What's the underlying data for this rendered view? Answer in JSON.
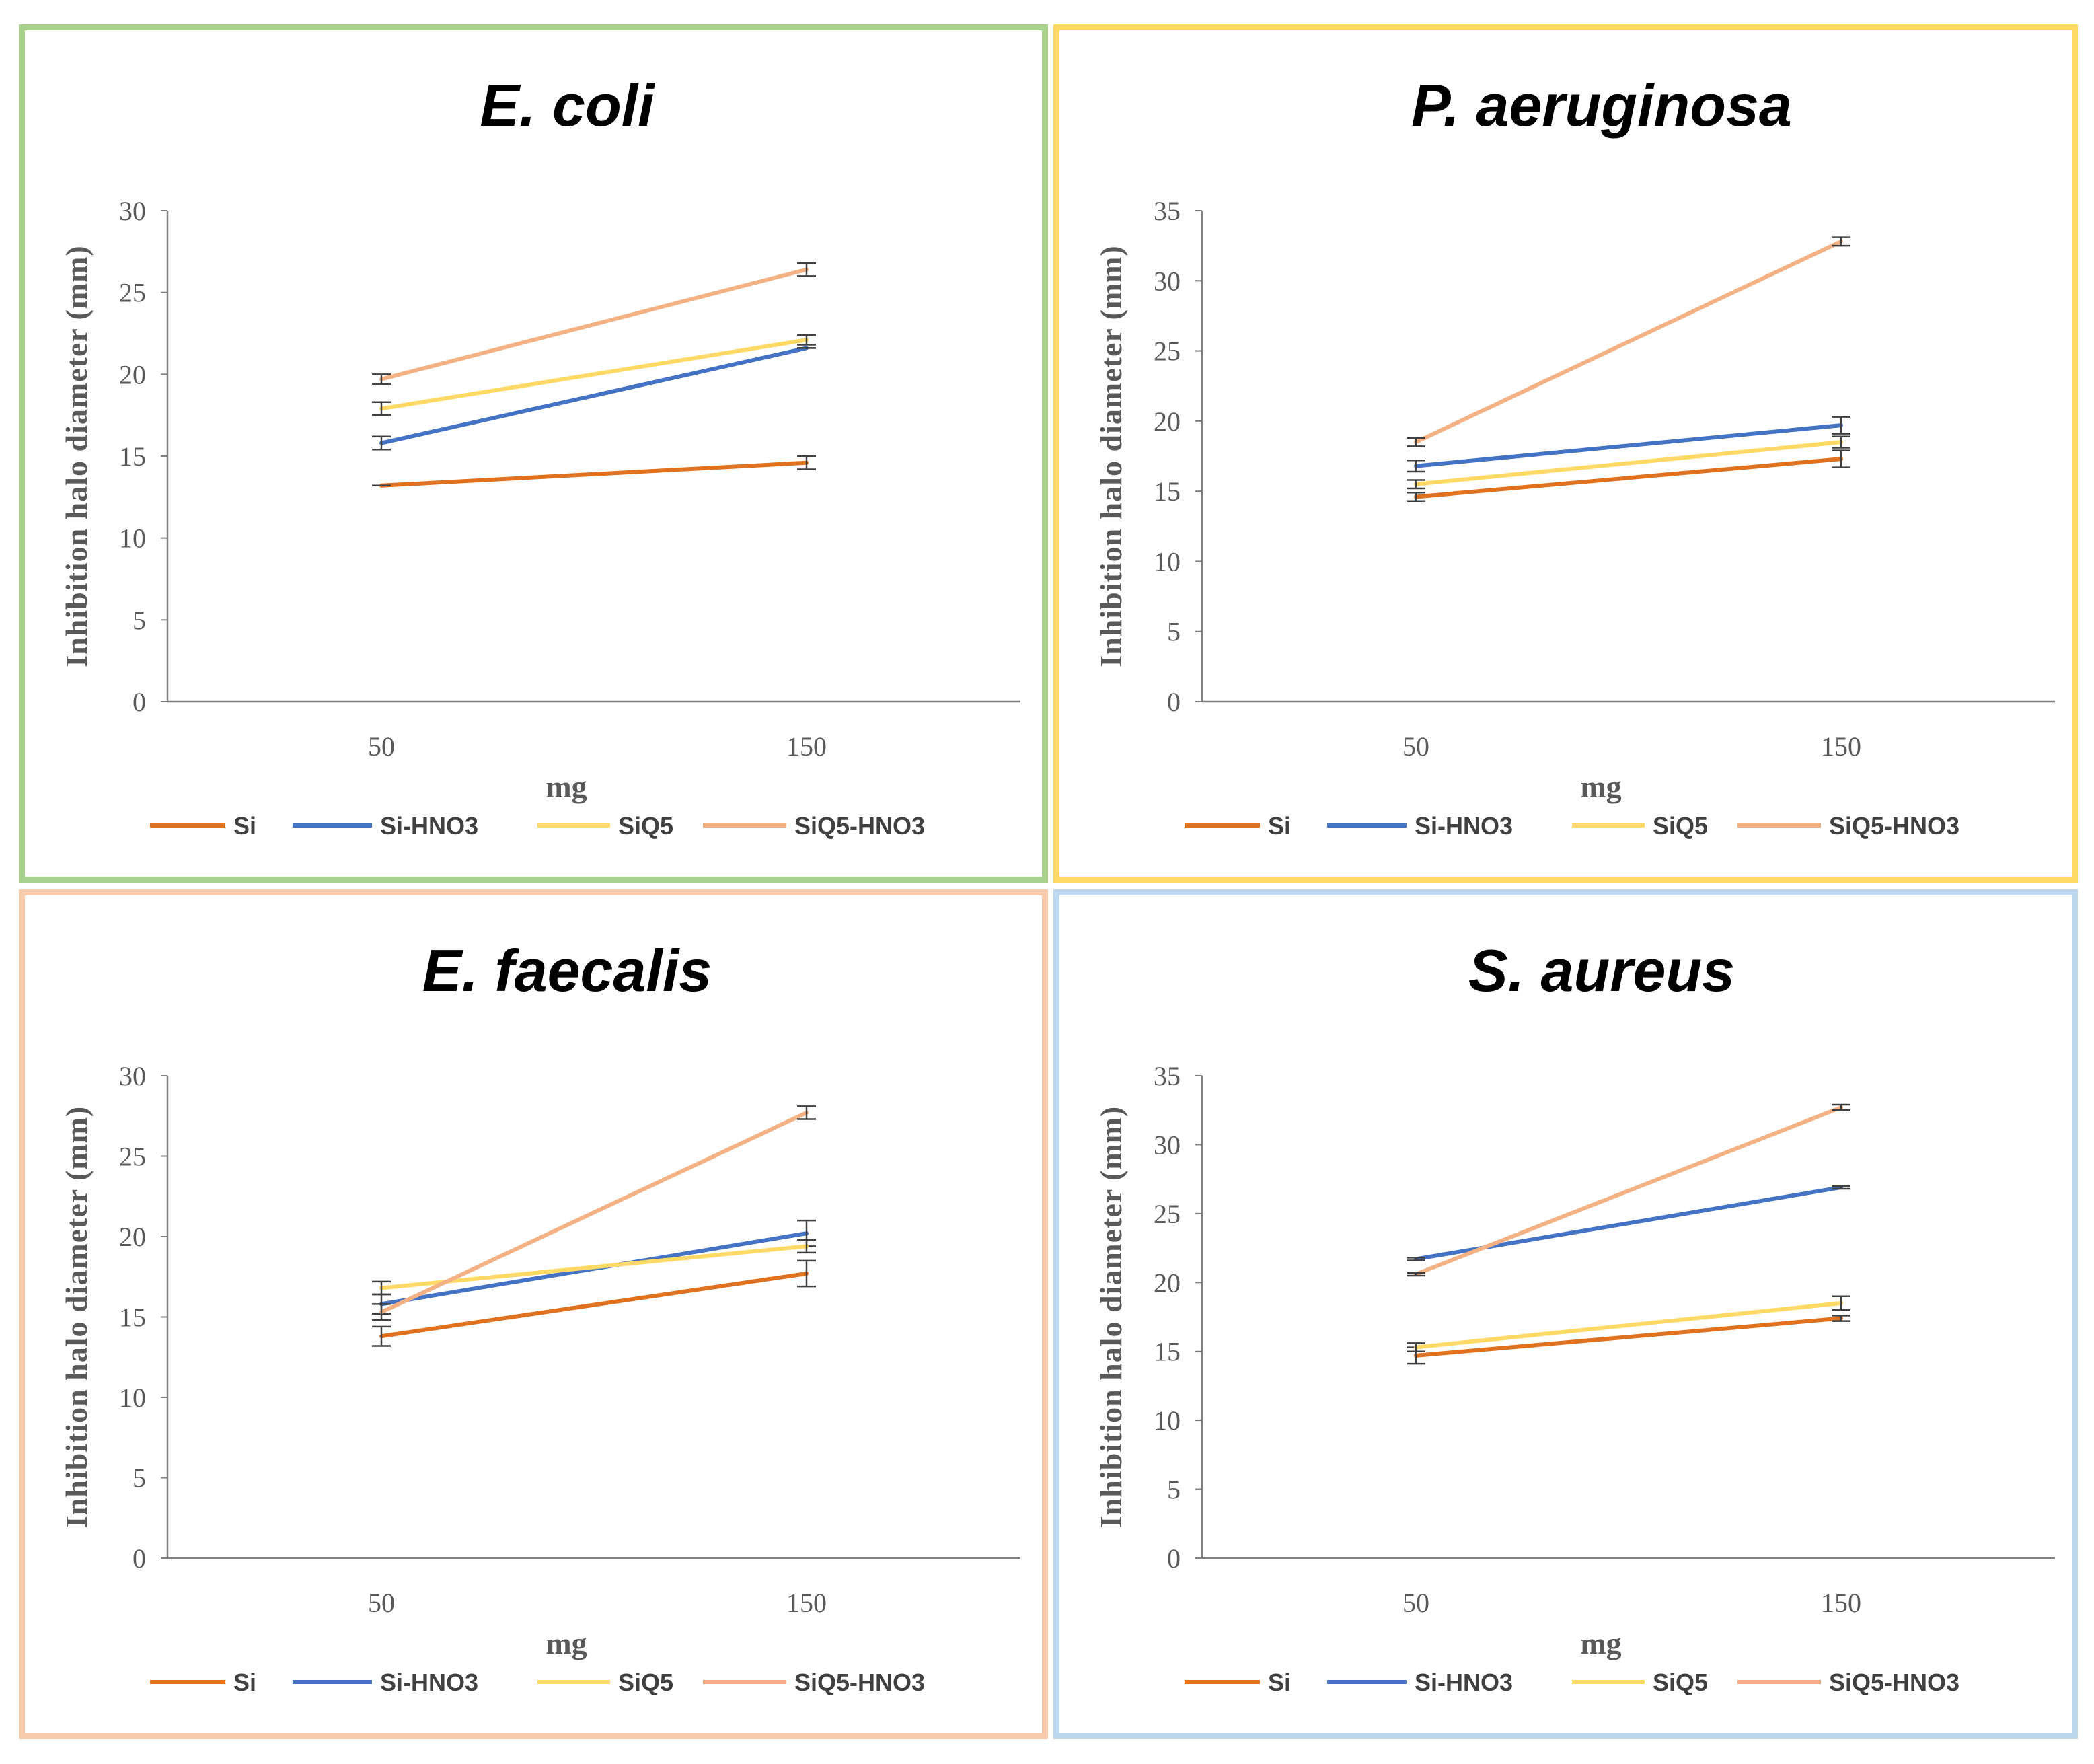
{
  "colors": {
    "Si": "#e0711f",
    "Si-HNO3": "#4472c4",
    "SiQ5": "#ffd966",
    "SiQ5-HNO3": "#f4b183",
    "axis": "#808080",
    "error_bar": "#404040",
    "panel_borders": [
      "#a9d18e",
      "#ffd966",
      "#f8cbad",
      "#bdd7ee"
    ]
  },
  "chart_data": [
    {
      "type": "line",
      "title": "E. coli",
      "xlabel": "mg",
      "ylabel": "Inhibition  halo diameter (mm)",
      "categories": [
        "50",
        "150"
      ],
      "ylim": [
        0,
        30
      ],
      "yticks": [
        0,
        5,
        10,
        15,
        20,
        25,
        30
      ],
      "legend": "bottom",
      "series": [
        {
          "name": "Si",
          "values": [
            13.2,
            14.6
          ],
          "errors": [
            0.0,
            0.4
          ]
        },
        {
          "name": "Si-HNO3",
          "values": [
            15.8,
            21.6
          ],
          "errors": [
            0.4,
            0.0
          ]
        },
        {
          "name": "SiQ5",
          "values": [
            17.9,
            22.1
          ],
          "errors": [
            0.4,
            0.3
          ]
        },
        {
          "name": "SiQ5-HNO3",
          "values": [
            19.7,
            26.4
          ],
          "errors": [
            0.3,
            0.4
          ]
        }
      ]
    },
    {
      "type": "line",
      "title": "P. aeruginosa",
      "xlabel": "mg",
      "ylabel": "Inhibition  halo diameter (mm)",
      "categories": [
        "50",
        "150"
      ],
      "ylim": [
        0,
        35
      ],
      "yticks": [
        0,
        5,
        10,
        15,
        20,
        25,
        30,
        35
      ],
      "legend": "bottom",
      "series": [
        {
          "name": "Si",
          "values": [
            14.6,
            17.3
          ],
          "errors": [
            0.3,
            0.6
          ]
        },
        {
          "name": "Si-HNO3",
          "values": [
            16.8,
            19.7
          ],
          "errors": [
            0.4,
            0.6
          ]
        },
        {
          "name": "SiQ5",
          "values": [
            15.5,
            18.5
          ],
          "errors": [
            0.3,
            0.4
          ]
        },
        {
          "name": "SiQ5-HNO3",
          "values": [
            18.5,
            32.8
          ],
          "errors": [
            0.3,
            0.3
          ]
        }
      ]
    },
    {
      "type": "line",
      "title": "E. faecalis",
      "xlabel": "mg",
      "ylabel": "Inhibition  halo diameter (mm)",
      "categories": [
        "50",
        "150"
      ],
      "ylim": [
        0,
        30
      ],
      "yticks": [
        0,
        5,
        10,
        15,
        20,
        25,
        30
      ],
      "legend": "bottom",
      "series": [
        {
          "name": "Si",
          "values": [
            13.8,
            17.7
          ],
          "errors": [
            0.6,
            0.8
          ]
        },
        {
          "name": "Si-HNO3",
          "values": [
            15.8,
            20.2
          ],
          "errors": [
            0.6,
            0.8
          ]
        },
        {
          "name": "SiQ5",
          "values": [
            16.8,
            19.4
          ],
          "errors": [
            0.4,
            0.4
          ]
        },
        {
          "name": "SiQ5-HNO3",
          "values": [
            15.3,
            27.7
          ],
          "errors": [
            0.5,
            0.4
          ]
        }
      ]
    },
    {
      "type": "line",
      "title": "S. aureus",
      "xlabel": "mg",
      "ylabel": "Inhibition  halo diameter (mm)",
      "categories": [
        "50",
        "150"
      ],
      "ylim": [
        0,
        35
      ],
      "yticks": [
        0,
        5,
        10,
        15,
        20,
        25,
        30,
        35
      ],
      "legend": "bottom",
      "series": [
        {
          "name": "Si",
          "values": [
            14.7,
            17.4
          ],
          "errors": [
            0.6,
            0.2
          ]
        },
        {
          "name": "Si-HNO3",
          "values": [
            21.7,
            26.9
          ],
          "errors": [
            0.1,
            0.1
          ]
        },
        {
          "name": "SiQ5",
          "values": [
            15.3,
            18.5
          ],
          "errors": [
            0.3,
            0.5
          ]
        },
        {
          "name": "SiQ5-HNO3",
          "values": [
            20.6,
            32.7
          ],
          "errors": [
            0.1,
            0.2
          ]
        }
      ]
    }
  ]
}
